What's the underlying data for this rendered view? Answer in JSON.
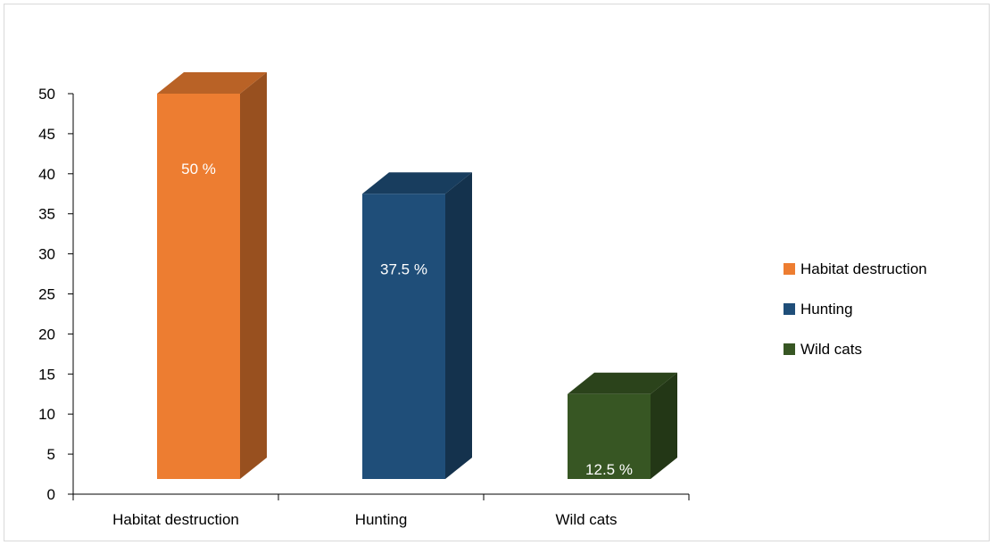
{
  "chart_data": {
    "type": "bar",
    "categories": [
      "Habitat destruction",
      "Hunting",
      "Wild cats"
    ],
    "values": [
      50,
      37.5,
      12.5
    ],
    "data_labels": [
      "50 %",
      "37.5 %",
      "12.5 %"
    ],
    "ylim": [
      0,
      50
    ],
    "yticks": [
      0,
      5,
      10,
      15,
      20,
      25,
      30,
      35,
      40,
      45,
      50
    ],
    "colors": [
      "#ed7d31",
      "#1f4e79",
      "#375623"
    ],
    "legend_position": "right",
    "grid": false,
    "style": "3d-column"
  },
  "legend": {
    "items": [
      {
        "label": "Habitat destruction",
        "color": "#ed7d31"
      },
      {
        "label": "Hunting",
        "color": "#1f4e79"
      },
      {
        "label": "Wild cats",
        "color": "#375623"
      }
    ]
  }
}
